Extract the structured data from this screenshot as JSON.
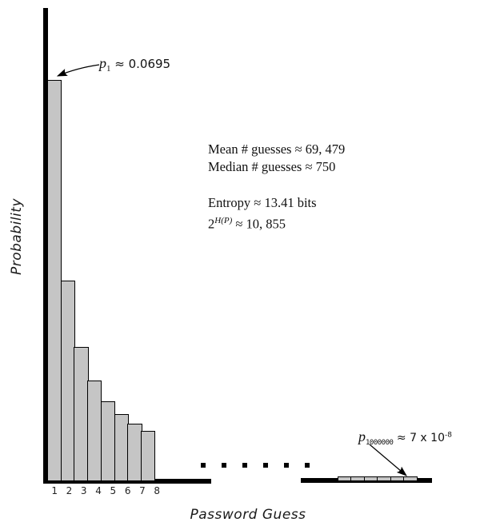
{
  "chart_data": {
    "type": "bar",
    "title": "",
    "xlabel": "Password Guess",
    "ylabel": "Probability",
    "categories": [
      "1",
      "2",
      "3",
      "4",
      "5",
      "6",
      "7",
      "8"
    ],
    "values": [
      0.0695,
      0.0348,
      0.0232,
      0.0174,
      0.0139,
      0.0116,
      0.0099,
      0.0087
    ],
    "ylim": [
      0,
      0.0695
    ],
    "grid": false,
    "legend": "none",
    "axis_break_dots": 6,
    "tail_segments": 6,
    "tail_value_text": "7 x 10^-8",
    "colors": {
      "bar_fill": "#c5c5c5",
      "bar_stroke": "#000000",
      "axis": "#000000"
    },
    "annotations": {
      "p1": {
        "symbol_base": "p",
        "symbol_sub": "1",
        "value_text": " ≈ 0.0695"
      },
      "tail": {
        "symbol_base": "p",
        "symbol_sub": "1000000",
        "value_text": " ≈ 7 x 10",
        "value_sup": "-8"
      },
      "stats_line1": "Mean # guesses ≈ 69, 479",
      "stats_line2": "Median # guesses ≈ 750",
      "stats_line3": "Entropy ≈ 13.41 bits",
      "stats_line4_base": "2",
      "stats_line4_sup": "H(P)",
      "stats_line4_rest": " ≈ 10, 855"
    }
  }
}
